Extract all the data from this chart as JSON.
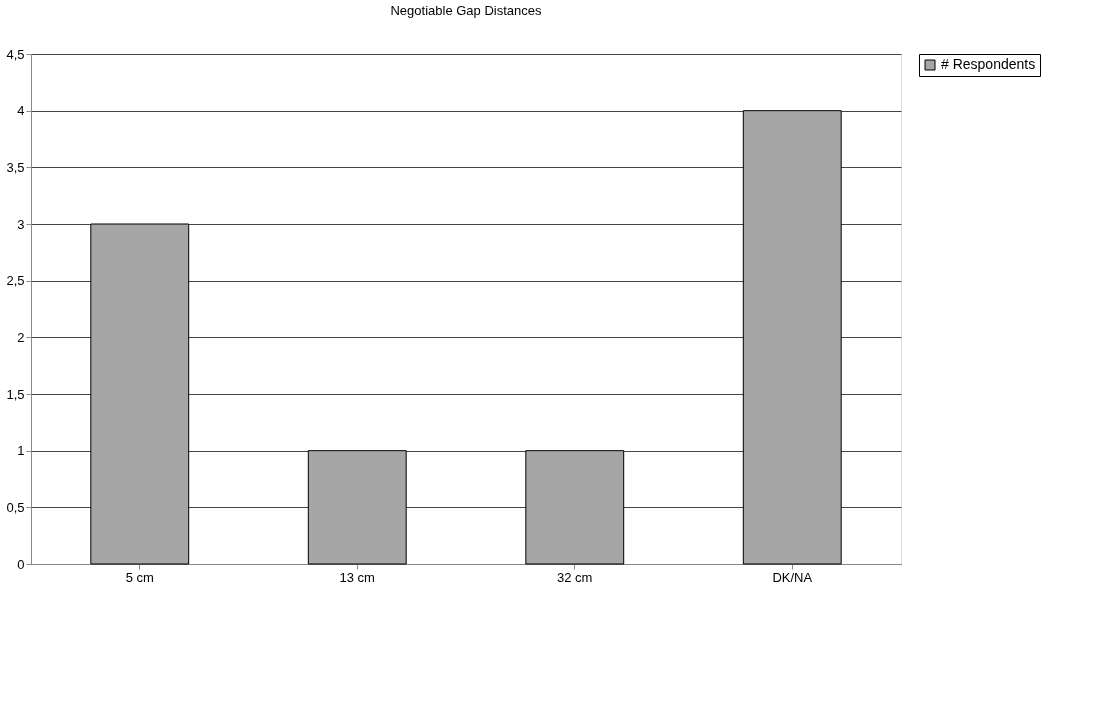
{
  "chart_data": {
    "type": "bar",
    "title": "Negotiable Gap Distances",
    "categories": [
      "5 cm",
      "13 cm",
      "32 cm",
      "DK/NA"
    ],
    "series": [
      {
        "name": "# Respondents",
        "color": "#a6a6a6",
        "values": [
          3,
          1,
          1,
          4
        ]
      }
    ],
    "ylim": [
      0,
      4.5
    ],
    "yticks": [
      0,
      {
        "value": 0.5,
        "label": "0,5"
      },
      1,
      {
        "value": 1.5,
        "label": "1,5"
      },
      2,
      {
        "value": 2.5,
        "label": "2,5"
      },
      3,
      {
        "value": 3.5,
        "label": "3,5"
      },
      4,
      {
        "value": 4.5,
        "label": "4,5"
      }
    ],
    "grid": "y",
    "legend": "right"
  }
}
